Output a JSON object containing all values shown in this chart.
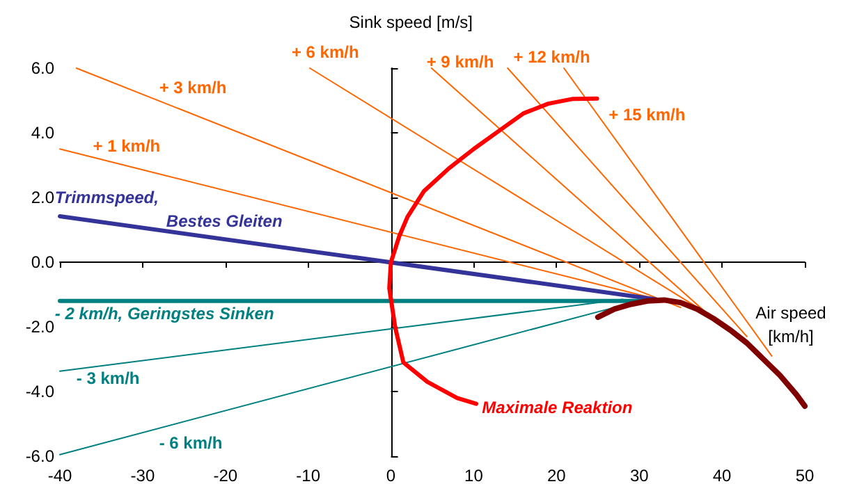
{
  "chart_data": {
    "type": "line",
    "xlabel": "Air speed [km/h]",
    "ylabel": "Sink speed [m/s]",
    "xlim": [
      -40,
      50
    ],
    "xticks": [
      -40,
      -30,
      -20,
      -10,
      0,
      10,
      20,
      30,
      40,
      50
    ],
    "ylim": [
      -6,
      6
    ],
    "yticks": [
      {
        "value": -6,
        "label": "-6.0"
      },
      {
        "value": -4,
        "label": "-4.0"
      },
      {
        "value": -2,
        "label": "-2.0"
      },
      {
        "value": 0,
        "label": "0.0"
      },
      {
        "value": 2,
        "label": "2.0"
      },
      {
        "value": 4,
        "label": "4.0"
      },
      {
        "value": 6,
        "label": "6.0"
      }
    ],
    "legend": false,
    "marker": "none",
    "line_style": "solid",
    "series": [
      {
        "name": "+ 1 km/h",
        "color": "#ff6600",
        "x": [
          -40,
          33
        ],
        "values": [
          3.5,
          -1.2
        ]
      },
      {
        "name": "+ 3 km/h",
        "color": "#ff6600",
        "x": [
          -38,
          35
        ],
        "values": [
          6.0,
          -1.4
        ]
      },
      {
        "name": "+ 6 km/h",
        "color": "#ff6600",
        "x": [
          -9.8,
          38
        ],
        "values": [
          6.0,
          -1.55
        ]
      },
      {
        "name": "+ 9 km/h",
        "color": "#ff6600",
        "x": [
          4.9,
          40
        ],
        "values": [
          6.0,
          -2.0
        ]
      },
      {
        "name": "+ 12 km/h",
        "color": "#ff6600",
        "x": [
          14.1,
          43
        ],
        "values": [
          6.0,
          -2.3
        ]
      },
      {
        "name": "+ 15 km/h",
        "color": "#ff6600",
        "x": [
          20.9,
          46
        ],
        "values": [
          6.0,
          -2.9
        ]
      },
      {
        "name": "Trimmspeed, Bestes Gleiten",
        "color": "#333399",
        "x": [
          -40,
          32
        ],
        "values": [
          1.42,
          -1.15
        ]
      },
      {
        "name": "- 2 km/h, Geringstes Sinken",
        "color": "#008080",
        "x": [
          -40,
          32
        ],
        "values": [
          -1.2,
          -1.2
        ]
      },
      {
        "name": "- 3 km/h",
        "color": "#008080",
        "x": [
          -40,
          28
        ],
        "values": [
          -3.37,
          -1.15
        ]
      },
      {
        "name": "- 6 km/h",
        "color": "#008080",
        "x": [
          -40,
          27
        ],
        "values": [
          -5.95,
          -1.4
        ]
      },
      {
        "name": "Maximale Reaktion",
        "color": "#ff0000",
        "x": [
          24.9,
          22,
          19,
          16,
          13,
          10,
          7,
          4,
          2,
          1,
          0,
          -0.2,
          0.5,
          1.5,
          4.4,
          8,
          10.3
        ],
        "values": [
          5.06,
          5.05,
          4.9,
          4.6,
          4.05,
          3.5,
          2.9,
          2.2,
          1.4,
          0.8,
          0,
          -0.8,
          -2,
          -3.1,
          -3.7,
          -4.2,
          -4.38
        ]
      },
      {
        "color": "#800000",
        "x": [
          25,
          27,
          29,
          31,
          33,
          35,
          37,
          39,
          41,
          43,
          45,
          47,
          49,
          50
        ],
        "values": [
          -1.7,
          -1.45,
          -1.3,
          -1.2,
          -1.17,
          -1.25,
          -1.45,
          -1.75,
          -2.1,
          -2.5,
          -3.0,
          -3.5,
          -4.1,
          -4.45
        ]
      }
    ]
  }
}
